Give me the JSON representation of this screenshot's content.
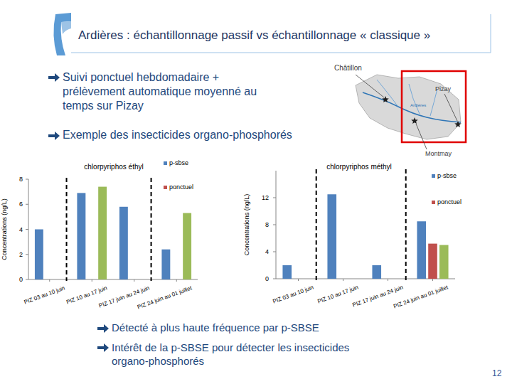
{
  "slide": {
    "title": "Ardières : échantillonnage passif vs échantillonnage « classique »",
    "bullets": [
      "Suivi ponctuel hebdomadaire + prélèvement automatique moyenné au temps sur Pizay",
      "Exemple des insecticides organo-phosphorés"
    ],
    "conclusions": [
      "Détecté à plus haute fréquence par p-SBSE",
      "Intérêt de la p-SBSE pour détecter les insecticides organo-phosphorés"
    ],
    "map_labels": [
      "Châtillon",
      "Pizay",
      "Ardières",
      "Montmay"
    ],
    "page_number": "12"
  },
  "chart_data": [
    {
      "type": "bar",
      "title": "chlorpyriphos éthyl",
      "ylabel": "Concentrations (ng/L)",
      "categories": [
        "PIZ 03 au 10 juin",
        "PIZ 10 au 17 juin",
        "PIZ 17 juin au 24 juin",
        "PIZ 24 juin au 01 juillet"
      ],
      "series": [
        {
          "name": "p-sbse",
          "color": "#4f81bd",
          "values": [
            4.0,
            6.9,
            5.8,
            2.4
          ]
        },
        {
          "name": "ponctuel",
          "color": "#c0504d",
          "values": [
            0,
            null,
            0,
            null
          ]
        },
        {
          "color": "#9bbb59",
          "values": [
            null,
            7.4,
            null,
            5.3
          ]
        }
      ],
      "ylim": [
        0,
        8
      ],
      "yticks": [
        0,
        2,
        4,
        6,
        8
      ],
      "grid": false,
      "legend": "right"
    },
    {
      "type": "bar",
      "title": "chlorpyriphos méthyl",
      "ylabel": "Concentrations (ng/L)",
      "categories": [
        "PIZ 03 au 10 juin",
        "PIZ 10 au 17 juin",
        "PIZ 17 juin au 24 juin",
        "PIZ 24 juin au 01 juillet"
      ],
      "series": [
        {
          "name": "p-sbse",
          "color": "#4f81bd",
          "values": [
            2.0,
            12.5,
            2.0,
            8.5
          ]
        },
        {
          "name": "ponctuel",
          "color": "#c0504d",
          "values": [
            null,
            null,
            null,
            5.2
          ]
        },
        {
          "color": "#9bbb59",
          "values": [
            null,
            null,
            null,
            5.0
          ]
        }
      ],
      "ylim": [
        0,
        16
      ],
      "yticks": [
        0,
        4,
        8,
        12
      ],
      "grid": false,
      "legend": "right"
    }
  ]
}
